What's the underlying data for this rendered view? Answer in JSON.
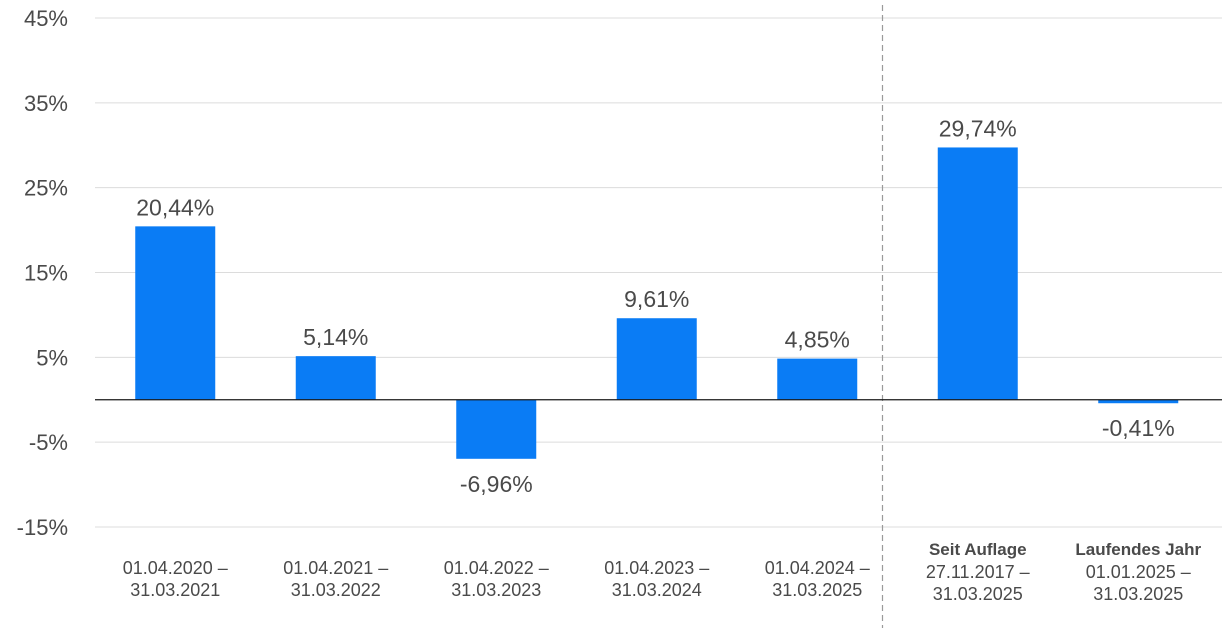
{
  "chart_data": {
    "type": "bar",
    "categories": [
      {
        "lines": [
          "01.04.2020 –",
          "31.03.2021"
        ],
        "bold": ""
      },
      {
        "lines": [
          "01.04.2021 –",
          "31.03.2022"
        ],
        "bold": ""
      },
      {
        "lines": [
          "01.04.2022 –",
          "31.03.2023"
        ],
        "bold": ""
      },
      {
        "lines": [
          "01.04.2023 –",
          "31.03.2024"
        ],
        "bold": ""
      },
      {
        "lines": [
          "01.04.2024 –",
          "31.03.2025"
        ],
        "bold": ""
      },
      {
        "lines": [
          "27.11.2017 –",
          "31.03.2025"
        ],
        "bold": "Seit Auflage"
      },
      {
        "lines": [
          "01.01.2025 –",
          "31.03.2025"
        ],
        "bold": "Laufendes Jahr"
      }
    ],
    "values": [
      20.44,
      5.14,
      -6.96,
      9.61,
      4.85,
      29.74,
      -0.41
    ],
    "value_labels": [
      "20,44%",
      "5,14%",
      "-6,96%",
      "9,61%",
      "4,85%",
      "29,74%",
      "-0,41%"
    ],
    "yticks": [
      -15,
      -5,
      5,
      15,
      25,
      35,
      45
    ],
    "ytick_labels": [
      "-15%",
      "-5%",
      "5%",
      "15%",
      "25%",
      "35%",
      "45%"
    ],
    "ylim": [
      -15,
      45
    ],
    "grid": true,
    "divider_after_index": 4,
    "bar_color": "#0a7cf5",
    "title": "",
    "xlabel": "",
    "ylabel": ""
  }
}
